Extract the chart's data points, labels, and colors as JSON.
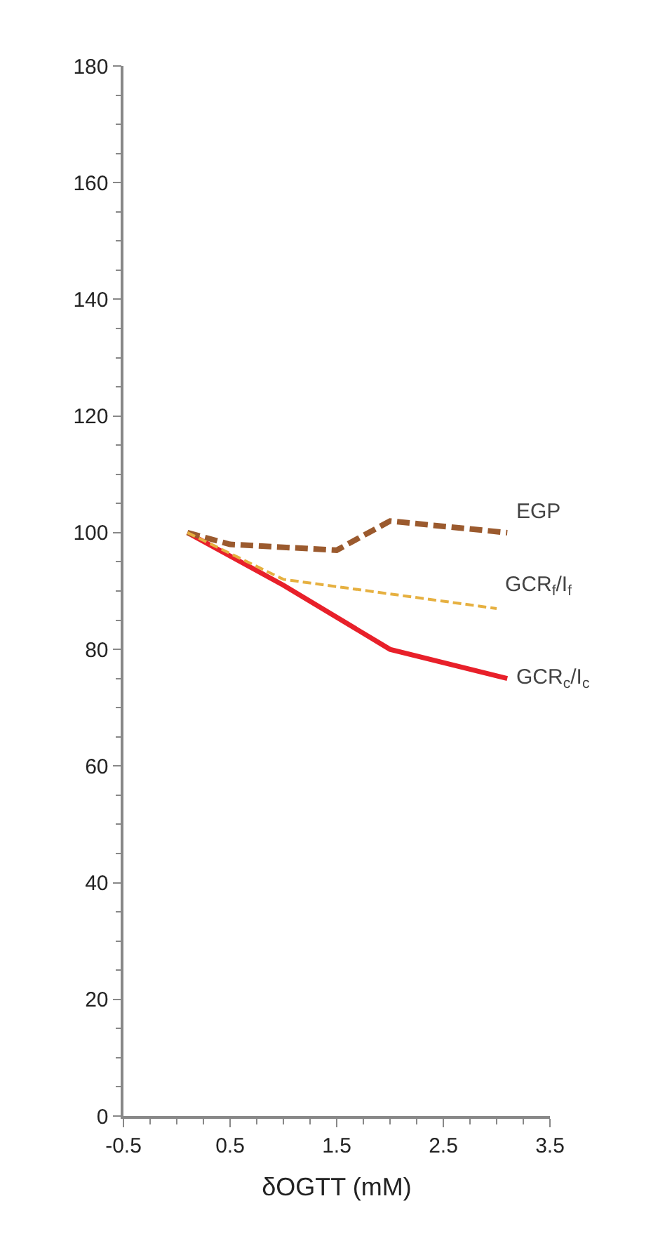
{
  "chart_data": {
    "type": "line",
    "xlabel": "δOGTT (mM)",
    "xlim": [
      -0.5,
      3.5
    ],
    "xticks": [
      -0.5,
      0.5,
      1.5,
      2.5,
      3.5
    ],
    "ylim": [
      0,
      180
    ],
    "yticks": [
      0,
      20,
      40,
      60,
      80,
      100,
      120,
      140,
      160,
      180
    ],
    "series": [
      {
        "name": "EGP",
        "color": "#9b5a2e",
        "line_style": "dashed",
        "x": [
          0.1,
          0.5,
          1.5,
          2.0,
          3.1
        ],
        "values": [
          100,
          98,
          97,
          102,
          100
        ]
      },
      {
        "name": "GCR$_{f}$/I$_{f}$",
        "color": "#e6b040",
        "line_style": "dashed",
        "x": [
          0.1,
          1.0,
          3.0
        ],
        "values": [
          100,
          92,
          87
        ]
      },
      {
        "name": "GCR$_{c}$/I$_{c}$",
        "color": "#e8202a",
        "line_style": "solid",
        "x": [
          0.1,
          1.0,
          2.0,
          3.1
        ],
        "values": [
          100,
          91,
          80,
          75
        ]
      }
    ]
  }
}
